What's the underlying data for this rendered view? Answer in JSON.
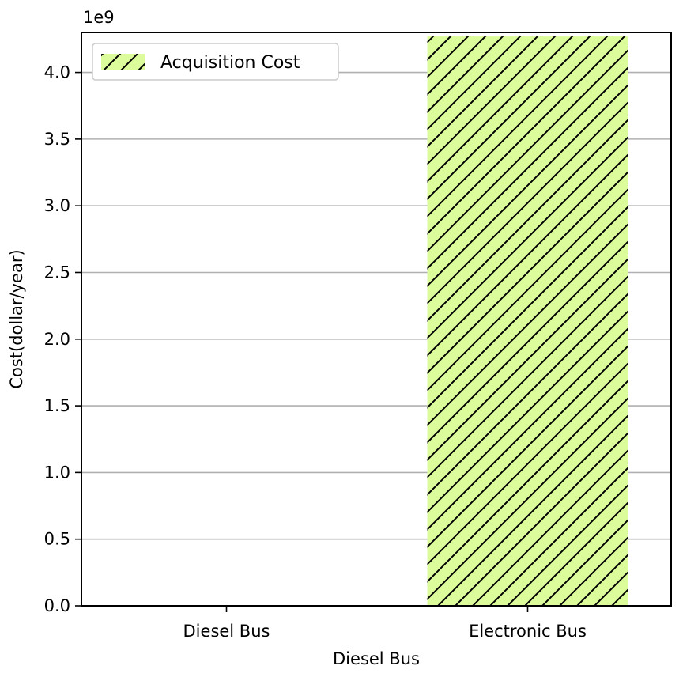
{
  "chart_data": {
    "type": "bar",
    "categories": [
      "Diesel Bus",
      "Electronic Bus"
    ],
    "series": [
      {
        "name": "Acquisition Cost",
        "values": [
          0,
          4270000000
        ],
        "color": "#dcfc9c",
        "hatch": "diagonal"
      }
    ],
    "xlabel": "Diesel Bus",
    "ylabel": "Cost(dollar/year)",
    "ylim": [
      0,
      4300000000
    ],
    "yticks": [
      "0.0",
      "0.5",
      "1.0",
      "1.5",
      "2.0",
      "2.5",
      "3.0",
      "3.5",
      "4.0"
    ],
    "ytick_values": [
      0,
      0.5,
      1.0,
      1.5,
      2.0,
      2.5,
      3.0,
      3.5,
      4.0
    ],
    "y_scale_label": "1e9",
    "y_scale_factor": 1000000000,
    "grid": "y",
    "legend_position": "top-left"
  }
}
